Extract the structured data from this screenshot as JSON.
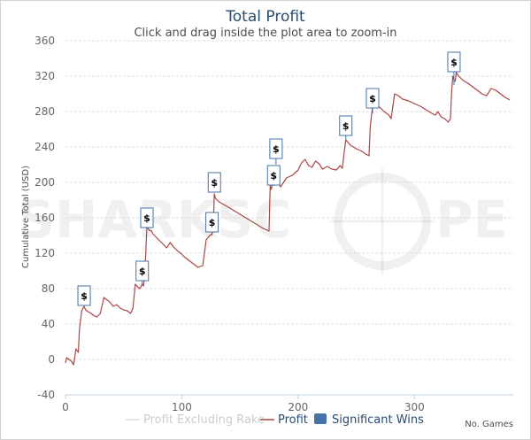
{
  "chart_data": {
    "type": "line",
    "title": "Total Profit",
    "subtitle": "Click and drag inside the plot area to zoom-in",
    "ylabel": "Cumulative Total (USD)",
    "xlabel": "No. Games",
    "xlim": [
      0,
      385
    ],
    "ylim": [
      -40,
      360
    ],
    "x_ticks": [
      0,
      100,
      200,
      300
    ],
    "y_ticks": [
      -40,
      0,
      40,
      80,
      120,
      160,
      200,
      240,
      280,
      320,
      360
    ],
    "grid": true,
    "legend_position": "bottom-center",
    "watermark": "SHARKSCOPE",
    "flag_label": "$",
    "series": [
      {
        "name": "Profit Excluding Rake",
        "color": "#dddddd",
        "visible": false,
        "x": [],
        "y": []
      },
      {
        "name": "Profit",
        "color": "#aa4643",
        "x": [
          0,
          1,
          3,
          5,
          7,
          9,
          10,
          11,
          12,
          14,
          16,
          17,
          18,
          22,
          25,
          27,
          30,
          33,
          35,
          38,
          41,
          44,
          47,
          50,
          53,
          56,
          58,
          60,
          62,
          64,
          66,
          67,
          68,
          69,
          70,
          72,
          74,
          75,
          78,
          81,
          84,
          87,
          90,
          93,
          96,
          99,
          102,
          106,
          110,
          114,
          118,
          121,
          124,
          126,
          127,
          128,
          129,
          132,
          136,
          140,
          145,
          150,
          155,
          160,
          165,
          170,
          175,
          176,
          177,
          178,
          179,
          180,
          181,
          185,
          190,
          195,
          200,
          203,
          206,
          209,
          212,
          215,
          218,
          221,
          225,
          229,
          233,
          236,
          238,
          240,
          241,
          243,
          245,
          250,
          255,
          258,
          261,
          262,
          263,
          264,
          266,
          270,
          274,
          278,
          280,
          283,
          286,
          290,
          295,
          300,
          305,
          310,
          315,
          318,
          320,
          323,
          326,
          329,
          331,
          332,
          333,
          334,
          335,
          336,
          338,
          342,
          346,
          350,
          354,
          358,
          362,
          366,
          370,
          374,
          378,
          382
        ],
        "y": [
          -4,
          2,
          0,
          -2,
          -6,
          12,
          10,
          8,
          35,
          55,
          60,
          57,
          55,
          52,
          49,
          48,
          52,
          70,
          68,
          65,
          60,
          62,
          58,
          56,
          55,
          52,
          58,
          85,
          82,
          80,
          85,
          83,
          94,
          120,
          150,
          146,
          145,
          142,
          138,
          134,
          130,
          126,
          132,
          127,
          123,
          120,
          116,
          112,
          108,
          104,
          106,
          135,
          140,
          142,
          150,
          187,
          182,
          178,
          175,
          172,
          168,
          164,
          160,
          156,
          152,
          148,
          145,
          196,
          192,
          200,
          210,
          204,
          202,
          195,
          205,
          208,
          214,
          222,
          226,
          219,
          217,
          224,
          221,
          215,
          218,
          215,
          214,
          219,
          216,
          238,
          248,
          245,
          242,
          238,
          235,
          232,
          230,
          262,
          275,
          285,
          290,
          285,
          280,
          276,
          272,
          300,
          298,
          294,
          292,
          289,
          286,
          282,
          278,
          276,
          280,
          274,
          272,
          268,
          272,
          302,
          320,
          316,
          314,
          324,
          320,
          315,
          312,
          308,
          304,
          300,
          298,
          306,
          304,
          300,
          296,
          293
        ]
      },
      {
        "name": "Significant Wins",
        "color": "#4572a7",
        "type": "flags",
        "x": [
          16,
          66,
          70,
          126,
          128,
          179,
          181,
          241,
          264,
          334
        ],
        "y": [
          60,
          85,
          145,
          140,
          192,
          196,
          220,
          248,
          278,
          310
        ],
        "label_values": [
          72,
          100,
          160,
          155,
          200,
          208,
          238,
          264,
          295,
          336
        ]
      }
    ]
  }
}
